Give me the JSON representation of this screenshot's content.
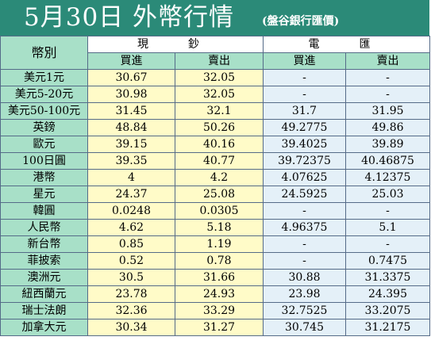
{
  "title": "5月30日 外幣行情",
  "source": "(盤谷銀行匯價)",
  "header": {
    "currency": "幣別",
    "cash": "現　鈔",
    "telegraphic": "電　匯",
    "buy": "買進",
    "sell": "賣出"
  },
  "rows": [
    {
      "name": "美元1元",
      "cash_buy": "30.67",
      "cash_sell": "32.05",
      "tt_buy": "-",
      "tt_sell": "-"
    },
    {
      "name": "美元5-20元",
      "cash_buy": "30.98",
      "cash_sell": "32.05",
      "tt_buy": "-",
      "tt_sell": "-"
    },
    {
      "name": "美元50-100元",
      "cash_buy": "31.45",
      "cash_sell": "32.1",
      "tt_buy": "31.7",
      "tt_sell": "31.95"
    },
    {
      "name": "英鎊",
      "cash_buy": "48.84",
      "cash_sell": "50.26",
      "tt_buy": "49.2775",
      "tt_sell": "49.86"
    },
    {
      "name": "歐元",
      "cash_buy": "39.15",
      "cash_sell": "40.16",
      "tt_buy": "39.4025",
      "tt_sell": "39.89"
    },
    {
      "name": "100日圓",
      "cash_buy": "39.35",
      "cash_sell": "40.77",
      "tt_buy": "39.72375",
      "tt_sell": "40.46875"
    },
    {
      "name": "港幣",
      "cash_buy": "4",
      "cash_sell": "4.2",
      "tt_buy": "4.07625",
      "tt_sell": "4.12375"
    },
    {
      "name": "星元",
      "cash_buy": "24.37",
      "cash_sell": "25.08",
      "tt_buy": "24.5925",
      "tt_sell": "25.03"
    },
    {
      "name": "韓圓",
      "cash_buy": "0.0248",
      "cash_sell": "0.0305",
      "tt_buy": "-",
      "tt_sell": "-"
    },
    {
      "name": "人民幣",
      "cash_buy": "4.62",
      "cash_sell": "5.18",
      "tt_buy": "4.96375",
      "tt_sell": "5.1"
    },
    {
      "name": "新台幣",
      "cash_buy": "0.85",
      "cash_sell": "1.19",
      "tt_buy": "-",
      "tt_sell": "-"
    },
    {
      "name": "菲披索",
      "cash_buy": "0.52",
      "cash_sell": "0.78",
      "tt_buy": "-",
      "tt_sell": "0.7475"
    },
    {
      "name": "澳洲元",
      "cash_buy": "30.5",
      "cash_sell": "31.66",
      "tt_buy": "30.88",
      "tt_sell": "31.3375"
    },
    {
      "name": "紐西蘭元",
      "cash_buy": "23.78",
      "cash_sell": "24.93",
      "tt_buy": "23.98",
      "tt_sell": "24.395"
    },
    {
      "name": "瑞士法朗",
      "cash_buy": "32.36",
      "cash_sell": "33.29",
      "tt_buy": "32.7525",
      "tt_sell": "33.2075"
    },
    {
      "name": "加拿大元",
      "cash_buy": "30.34",
      "cash_sell": "31.27",
      "tt_buy": "30.745",
      "tt_sell": "31.2175"
    }
  ],
  "colors": {
    "title_bg": "#2b8a78",
    "name_bg": "#a8e0c8",
    "cash_bg": "#fffbc8",
    "tt_bg": "#e4f0f8",
    "border": "#556b88"
  }
}
